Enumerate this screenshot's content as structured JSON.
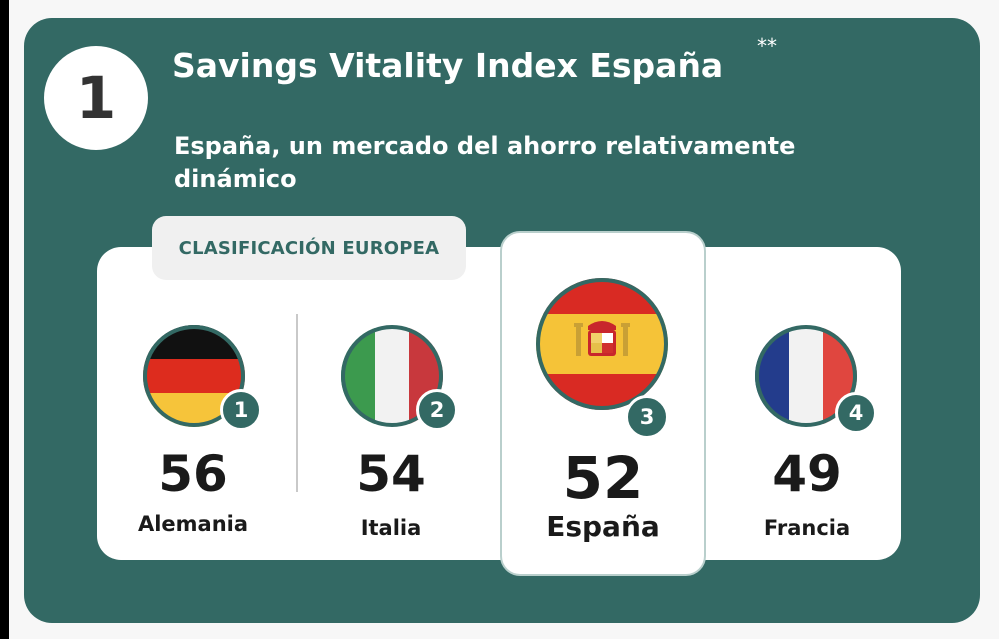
{
  "step_number": "1",
  "title": "Savings Vitality Index España",
  "title_mark": "**",
  "subtitle": "España, un mercado del ahorro relativamente dinámico",
  "ranking_label": "CLASIFICACIÓN EUROPEA",
  "countries": [
    {
      "rank": "1",
      "score": "56",
      "name": "Alemania",
      "flag": "germany-flag-icon"
    },
    {
      "rank": "2",
      "score": "54",
      "name": "Italia",
      "flag": "italy-flag-icon"
    },
    {
      "rank": "3",
      "score": "52",
      "name": "España",
      "flag": "spain-flag-icon",
      "highlighted": true
    },
    {
      "rank": "4",
      "score": "49",
      "name": "Francia",
      "flag": "france-flag-icon"
    }
  ],
  "colors": {
    "card": "#336964",
    "panel": "#ffffff",
    "text": "#1a1a1a"
  }
}
